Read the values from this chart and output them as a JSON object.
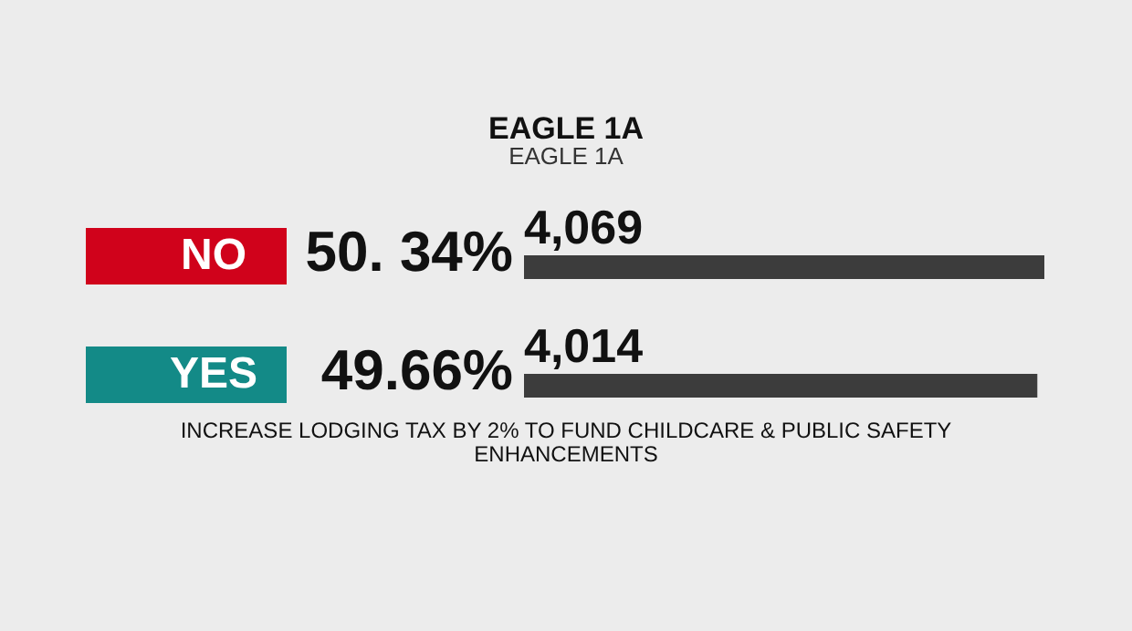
{
  "chart_data": {
    "type": "bar",
    "orientation": "horizontal",
    "title": "EAGLE 1A",
    "subtitle": "EAGLE 1A",
    "categories": [
      "NO",
      "YES"
    ],
    "values": [
      4069,
      4014
    ],
    "color": "#3c3c3c",
    "data_labels": true,
    "value_labels": [
      "4,069",
      "4,014"
    ],
    "annotations": [
      "50. 34%",
      "49.66%",
      "INCREASE LODGING TAX BY 2% TO FUND CHILDCARE & PUBLIC SAFETY ENHANCEMENTS"
    ]
  }
}
